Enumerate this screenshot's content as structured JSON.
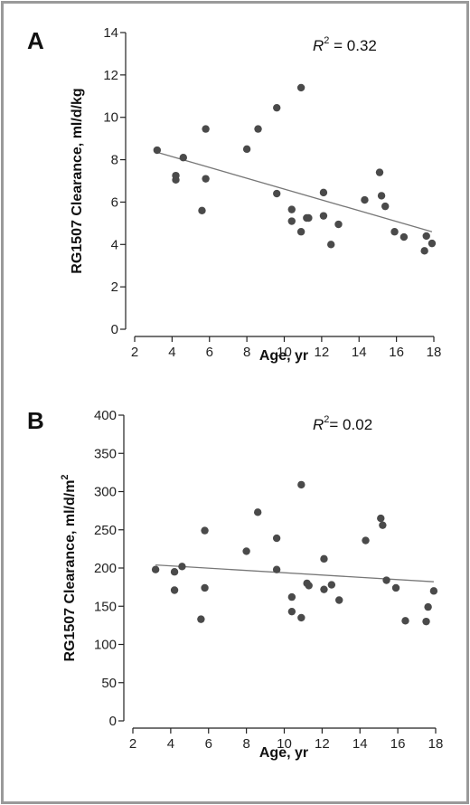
{
  "colors": {
    "point": "#4a4a4a",
    "trend": "#777777",
    "axis": "#222222",
    "frame": "#9a9a9a"
  },
  "chart_data": [
    {
      "type": "scatter",
      "panel": "A",
      "xlabel": "Age, yr",
      "ylabel": "RG1507 Clearance, ml/d/kg",
      "annotation": {
        "prefix": "R",
        "sup": "2",
        "suffix": " = 0.32"
      },
      "xlim": [
        2,
        18
      ],
      "ylim": [
        0,
        14
      ],
      "xticks": [
        2,
        4,
        6,
        8,
        10,
        12,
        14,
        16,
        18
      ],
      "yticks": [
        0,
        2,
        4,
        6,
        8,
        10,
        12,
        14
      ],
      "grid": false,
      "trend": [
        [
          3.2,
          8.35
        ],
        [
          17.9,
          4.6
        ]
      ],
      "points": [
        [
          3.2,
          8.45
        ],
        [
          4.2,
          7.25
        ],
        [
          4.2,
          7.05
        ],
        [
          4.6,
          8.1
        ],
        [
          5.6,
          5.6
        ],
        [
          5.8,
          9.45
        ],
        [
          5.8,
          7.1
        ],
        [
          8.0,
          8.5
        ],
        [
          8.6,
          9.45
        ],
        [
          9.6,
          10.45
        ],
        [
          9.6,
          6.4
        ],
        [
          10.4,
          5.65
        ],
        [
          10.4,
          5.1
        ],
        [
          10.9,
          11.4
        ],
        [
          10.9,
          4.6
        ],
        [
          11.2,
          5.25
        ],
        [
          11.3,
          5.25
        ],
        [
          12.1,
          6.45
        ],
        [
          12.1,
          5.35
        ],
        [
          12.5,
          4.0
        ],
        [
          12.9,
          4.95
        ],
        [
          14.3,
          6.1
        ],
        [
          15.1,
          7.4
        ],
        [
          15.2,
          6.3
        ],
        [
          15.4,
          5.8
        ],
        [
          15.9,
          4.6
        ],
        [
          16.4,
          4.35
        ],
        [
          17.5,
          3.7
        ],
        [
          17.6,
          4.4
        ],
        [
          17.9,
          4.05
        ]
      ]
    },
    {
      "type": "scatter",
      "panel": "B",
      "xlabel": "Age, yr",
      "ylabel": "RG1507 Clearance, ml/d/m",
      "ylabel_sup": "2",
      "annotation": {
        "prefix": "R",
        "sup": "2",
        "suffix": "= 0.02"
      },
      "xlim": [
        2,
        18
      ],
      "ylim": [
        0,
        400
      ],
      "xticks": [
        2,
        4,
        6,
        8,
        10,
        12,
        14,
        16,
        18
      ],
      "yticks": [
        0,
        50,
        100,
        150,
        200,
        250,
        300,
        350,
        400
      ],
      "grid": false,
      "trend": [
        [
          3.2,
          204
        ],
        [
          17.9,
          182
        ]
      ],
      "points": [
        [
          3.2,
          198
        ],
        [
          4.2,
          195
        ],
        [
          4.2,
          171
        ],
        [
          4.6,
          202
        ],
        [
          5.6,
          133
        ],
        [
          5.8,
          249
        ],
        [
          5.8,
          174
        ],
        [
          8.0,
          222
        ],
        [
          8.6,
          273
        ],
        [
          9.6,
          239
        ],
        [
          9.6,
          198
        ],
        [
          10.4,
          162
        ],
        [
          10.4,
          143
        ],
        [
          10.9,
          309
        ],
        [
          10.9,
          135
        ],
        [
          11.2,
          180
        ],
        [
          11.3,
          177
        ],
        [
          12.1,
          212
        ],
        [
          12.1,
          172
        ],
        [
          12.5,
          178
        ],
        [
          12.9,
          158
        ],
        [
          14.3,
          236
        ],
        [
          15.1,
          265
        ],
        [
          15.2,
          256
        ],
        [
          15.4,
          184
        ],
        [
          15.9,
          174
        ],
        [
          16.4,
          131
        ],
        [
          17.5,
          130
        ],
        [
          17.6,
          149
        ],
        [
          17.9,
          170
        ]
      ]
    }
  ]
}
